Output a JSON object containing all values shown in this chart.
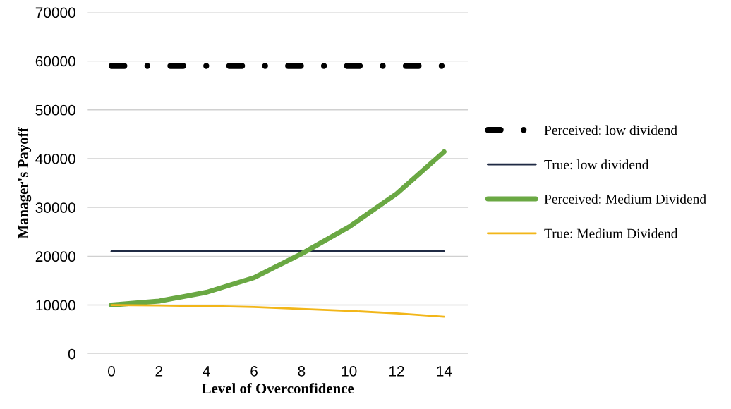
{
  "chart_data": {
    "type": "line",
    "xlabel": "Level of Overconfidence",
    "ylabel": "Manager's Payoff",
    "categories": [
      "0",
      "2",
      "4",
      "6",
      "8",
      "10",
      "12",
      "14"
    ],
    "series": [
      {
        "name": "Perceived: low dividend",
        "color": "#000000",
        "line_style": "dashdot",
        "values": [
          59000,
          59000,
          59000,
          59000,
          59000,
          59000,
          59000,
          59000
        ]
      },
      {
        "name": "True: low dividend",
        "color": "#1f2a44",
        "values": [
          21000,
          21000,
          21000,
          21000,
          21000,
          21000,
          21000,
          21000
        ]
      },
      {
        "name": "Perceived: Medium Dividend",
        "color": "#6aa843",
        "values": [
          10000,
          10800,
          12600,
          15600,
          20500,
          26000,
          32800,
          41400
        ]
      },
      {
        "name": "True: Medium Dividend",
        "color": "#f2b619",
        "values": [
          10000,
          9900,
          9800,
          9600,
          9200,
          8800,
          8300,
          7600
        ]
      }
    ],
    "ylim": [
      0,
      70000
    ],
    "yticks": [
      0,
      10000,
      20000,
      30000,
      40000,
      50000,
      60000,
      70000
    ],
    "grid": "y",
    "legend": "right",
    "line_style": "solid"
  }
}
